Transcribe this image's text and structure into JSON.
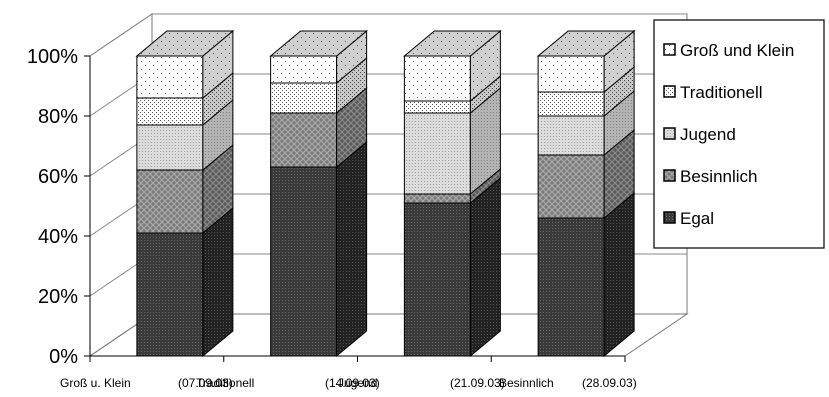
{
  "chart_data": {
    "type": "bar",
    "stacked": true,
    "percent_stacked": true,
    "three_d": true,
    "categories": [
      "Groß u. Klein (07.09.03)",
      "Traditionell (14.09.03)",
      "Jugend (21.09.03)",
      "Besinnlich (28.09.03)"
    ],
    "category_label_parts": [
      [
        "Groß u. Klein",
        "(07.09.03)"
      ],
      [
        "Traditionell",
        "(14.09.03)"
      ],
      [
        "Jugend",
        "(21.09.03)"
      ],
      [
        "Besinnlich",
        "(28.09.03)"
      ]
    ],
    "series": [
      {
        "name": "Egal",
        "values": [
          41,
          63,
          51,
          46
        ]
      },
      {
        "name": "Besinnlich",
        "values": [
          21,
          18,
          3,
          21
        ]
      },
      {
        "name": "Jugend",
        "values": [
          15,
          0,
          27,
          13
        ]
      },
      {
        "name": "Traditionell",
        "values": [
          9,
          10,
          4,
          8
        ]
      },
      {
        "name": "Groß und Klein",
        "values": [
          14,
          9,
          15,
          12
        ]
      }
    ],
    "legend_order": [
      "Groß und Klein",
      "Traditionell",
      "Jugend",
      "Besinnlich",
      "Egal"
    ],
    "y_ticks": [
      "0%",
      "20%",
      "40%",
      "60%",
      "80%",
      "100%"
    ],
    "ylim": [
      0,
      100
    ],
    "grid": true,
    "legend_position": "right",
    "colors": {
      "Egal": "#3a3a3a",
      "Besinnlich": "#8a8a8a",
      "Jugend": "#d2d2d2",
      "Traditionell": "#ffffff",
      "Groß und Klein": "#ffffff"
    }
  }
}
